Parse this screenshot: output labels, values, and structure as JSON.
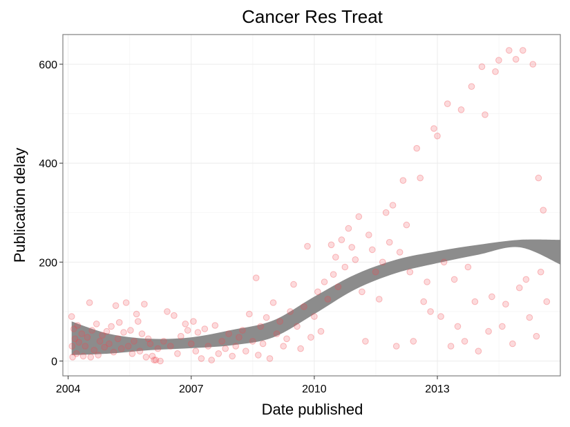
{
  "chart_data": {
    "type": "scatter",
    "title": "Cancer Res Treat",
    "xlabel": "Date published",
    "ylabel": "Publication delay",
    "x_axis": {
      "type": "date",
      "range": [
        "2003-11-15",
        "2015-12-31"
      ],
      "ticks": [
        "2004",
        "2007",
        "2010",
        "2013"
      ]
    },
    "y_axis": {
      "range": [
        -30,
        660
      ],
      "ticks": [
        0,
        200,
        400,
        600
      ]
    },
    "grid": true,
    "legend": "none",
    "colors": {
      "points": "#f0484e",
      "smooth_band": "#8c8c8c",
      "grid": "#ebebeb",
      "border": "#7f7f7f"
    },
    "series": [
      {
        "points": [
          [
            "2004-02-01",
            90
          ],
          [
            "2004-02-05",
            30
          ],
          [
            "2004-02-10",
            8
          ],
          [
            "2004-02-20",
            65
          ],
          [
            "2004-03-01",
            45
          ],
          [
            "2004-03-15",
            15
          ],
          [
            "2004-03-25",
            72
          ],
          [
            "2004-04-05",
            38
          ],
          [
            "2004-05-01",
            55
          ],
          [
            "2004-05-15",
            10
          ],
          [
            "2004-06-01",
            30
          ],
          [
            "2004-06-20",
            48
          ],
          [
            "2004-07-10",
            118
          ],
          [
            "2004-07-20",
            8
          ],
          [
            "2004-08-01",
            62
          ],
          [
            "2004-08-20",
            22
          ],
          [
            "2004-09-10",
            75
          ],
          [
            "2004-09-25",
            12
          ],
          [
            "2004-10-10",
            40
          ],
          [
            "2004-11-01",
            52
          ],
          [
            "2004-11-20",
            28
          ],
          [
            "2004-12-10",
            60
          ],
          [
            "2005-01-01",
            35
          ],
          [
            "2005-01-20",
            70
          ],
          [
            "2005-02-10",
            18
          ],
          [
            "2005-03-01",
            112
          ],
          [
            "2005-03-20",
            45
          ],
          [
            "2005-04-01",
            78
          ],
          [
            "2005-04-20",
            25
          ],
          [
            "2005-05-10",
            58
          ],
          [
            "2005-06-01",
            118
          ],
          [
            "2005-06-20",
            30
          ],
          [
            "2005-07-10",
            62
          ],
          [
            "2005-07-25",
            15
          ],
          [
            "2005-08-10",
            40
          ],
          [
            "2005-09-01",
            95
          ],
          [
            "2005-09-15",
            80
          ],
          [
            "2005-10-01",
            20
          ],
          [
            "2005-10-20",
            55
          ],
          [
            "2005-11-10",
            115
          ],
          [
            "2005-11-25",
            8
          ],
          [
            "2005-12-15",
            45
          ],
          [
            "2006-01-01",
            35
          ],
          [
            "2006-01-20",
            10
          ],
          [
            "2006-02-05",
            2
          ],
          [
            "2006-02-20",
            2
          ],
          [
            "2006-03-10",
            25
          ],
          [
            "2006-04-01",
            0
          ],
          [
            "2006-05-01",
            40
          ],
          [
            "2006-06-01",
            100
          ],
          [
            "2006-07-01",
            30
          ],
          [
            "2006-08-01",
            92
          ],
          [
            "2006-09-01",
            15
          ],
          [
            "2006-10-01",
            50
          ],
          [
            "2006-11-10",
            75
          ],
          [
            "2006-12-01",
            62
          ],
          [
            "2007-01-01",
            35
          ],
          [
            "2007-01-20",
            80
          ],
          [
            "2007-02-10",
            20
          ],
          [
            "2007-03-01",
            58
          ],
          [
            "2007-04-01",
            5
          ],
          [
            "2007-05-01",
            65
          ],
          [
            "2007-06-01",
            30
          ],
          [
            "2007-07-01",
            2
          ],
          [
            "2007-08-01",
            72
          ],
          [
            "2007-09-01",
            15
          ],
          [
            "2007-10-01",
            40
          ],
          [
            "2007-11-01",
            25
          ],
          [
            "2007-12-01",
            55
          ],
          [
            "2008-01-01",
            10
          ],
          [
            "2008-02-01",
            30
          ],
          [
            "2008-03-01",
            48
          ],
          [
            "2008-04-01",
            62
          ],
          [
            "2008-05-01",
            20
          ],
          [
            "2008-06-01",
            95
          ],
          [
            "2008-07-01",
            40
          ],
          [
            "2008-08-01",
            168
          ],
          [
            "2008-08-20",
            12
          ],
          [
            "2008-09-10",
            70
          ],
          [
            "2008-10-01",
            35
          ],
          [
            "2008-11-01",
            88
          ],
          [
            "2008-12-01",
            5
          ],
          [
            "2009-01-01",
            118
          ],
          [
            "2009-02-01",
            55
          ],
          [
            "2009-03-01",
            80
          ],
          [
            "2009-04-01",
            30
          ],
          [
            "2009-05-01",
            45
          ],
          [
            "2009-06-01",
            100
          ],
          [
            "2009-07-01",
            155
          ],
          [
            "2009-08-01",
            70
          ],
          [
            "2009-09-01",
            25
          ],
          [
            "2009-10-01",
            110
          ],
          [
            "2009-11-01",
            232
          ],
          [
            "2009-12-01",
            48
          ],
          [
            "2010-01-01",
            90
          ],
          [
            "2010-02-01",
            140
          ],
          [
            "2010-03-01",
            60
          ],
          [
            "2010-04-01",
            160
          ],
          [
            "2010-05-01",
            125
          ],
          [
            "2010-06-01",
            235
          ],
          [
            "2010-06-20",
            175
          ],
          [
            "2010-07-10",
            210
          ],
          [
            "2010-08-01",
            150
          ],
          [
            "2010-09-01",
            245
          ],
          [
            "2010-10-01",
            190
          ],
          [
            "2010-11-01",
            268
          ],
          [
            "2010-12-01",
            230
          ],
          [
            "2011-01-01",
            205
          ],
          [
            "2011-02-01",
            292
          ],
          [
            "2011-03-01",
            140
          ],
          [
            "2011-04-01",
            40
          ],
          [
            "2011-05-01",
            255
          ],
          [
            "2011-06-01",
            225
          ],
          [
            "2011-07-01",
            180
          ],
          [
            "2011-08-01",
            125
          ],
          [
            "2011-09-01",
            200
          ],
          [
            "2011-10-01",
            300
          ],
          [
            "2011-11-01",
            240
          ],
          [
            "2011-12-01",
            315
          ],
          [
            "2012-01-01",
            30
          ],
          [
            "2012-02-01",
            220
          ],
          [
            "2012-03-01",
            365
          ],
          [
            "2012-04-01",
            275
          ],
          [
            "2012-05-01",
            180
          ],
          [
            "2012-06-01",
            40
          ],
          [
            "2012-07-01",
            430
          ],
          [
            "2012-08-01",
            370
          ],
          [
            "2012-09-01",
            120
          ],
          [
            "2012-10-01",
            160
          ],
          [
            "2012-11-01",
            100
          ],
          [
            "2012-12-01",
            470
          ],
          [
            "2013-01-01",
            455
          ],
          [
            "2013-02-01",
            90
          ],
          [
            "2013-03-01",
            200
          ],
          [
            "2013-04-01",
            520
          ],
          [
            "2013-05-01",
            30
          ],
          [
            "2013-06-01",
            165
          ],
          [
            "2013-07-01",
            70
          ],
          [
            "2013-08-01",
            508
          ],
          [
            "2013-09-01",
            40
          ],
          [
            "2013-10-01",
            190
          ],
          [
            "2013-11-01",
            555
          ],
          [
            "2013-12-01",
            120
          ],
          [
            "2014-01-01",
            20
          ],
          [
            "2014-02-01",
            595
          ],
          [
            "2014-03-01",
            498
          ],
          [
            "2014-04-01",
            60
          ],
          [
            "2014-05-01",
            130
          ],
          [
            "2014-06-01",
            585
          ],
          [
            "2014-07-01",
            608
          ],
          [
            "2014-08-01",
            70
          ],
          [
            "2014-09-01",
            115
          ],
          [
            "2014-10-01",
            628
          ],
          [
            "2014-11-01",
            35
          ],
          [
            "2014-12-01",
            610
          ],
          [
            "2015-01-01",
            148
          ],
          [
            "2015-02-01",
            628
          ],
          [
            "2015-03-01",
            165
          ],
          [
            "2015-04-01",
            88
          ],
          [
            "2015-05-01",
            600
          ],
          [
            "2015-06-01",
            50
          ],
          [
            "2015-06-20",
            370
          ],
          [
            "2015-07-10",
            180
          ],
          [
            "2015-08-01",
            305
          ],
          [
            "2015-09-01",
            120
          ]
        ]
      }
    ],
    "smooth_band": {
      "x": [
        "2004-02-01",
        "2005-01-01",
        "2006-01-01",
        "2007-01-01",
        "2008-01-01",
        "2009-01-01",
        "2010-01-01",
        "2011-01-01",
        "2012-01-01",
        "2013-01-01",
        "2014-01-01",
        "2015-01-01",
        "2016-01-01"
      ],
      "lower": [
        12,
        15,
        22,
        26,
        32,
        48,
        95,
        145,
        178,
        198,
        215,
        230,
        195
      ],
      "upper": [
        80,
        55,
        45,
        48,
        63,
        82,
        130,
        175,
        205,
        222,
        235,
        245,
        245
      ]
    }
  }
}
